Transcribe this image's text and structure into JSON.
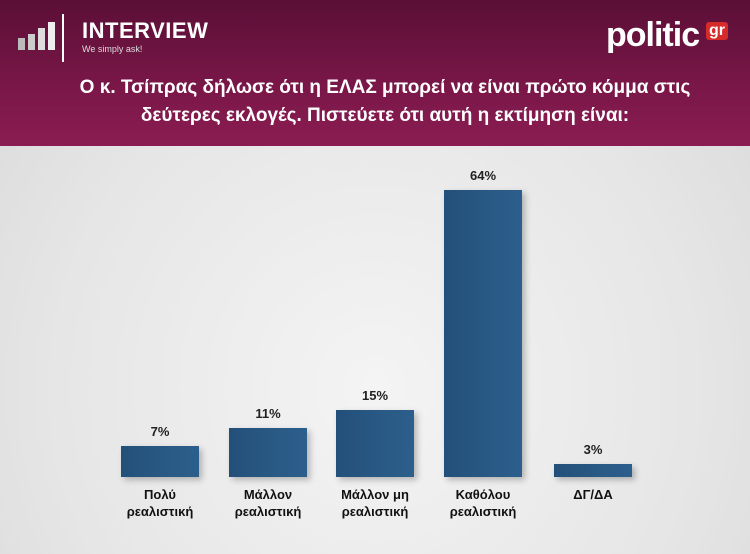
{
  "header": {
    "brand": "INTERVIEW",
    "tagline": "We simply ask!",
    "logo": "politic",
    "logo_suffix": "gr"
  },
  "chart_data": {
    "type": "bar",
    "title": "Ο κ. Τσίπρας δήλωσε ότι η ΕΛΑΣ μπορεί να είναι πρώτο κόμμα στις δεύτερες εκλογές. Πιστεύετε ότι αυτή η εκτίμηση είναι:",
    "categories": [
      "Πολύ ρεαλιστική",
      "Μάλλον ρεαλιστική",
      "Μάλλον μη ρεαλιστική",
      "Καθόλου ρεαλιστική",
      "ΔΓ/ΔΑ"
    ],
    "values": [
      7,
      11,
      15,
      64,
      3
    ],
    "value_labels": [
      "7%",
      "11%",
      "15%",
      "64%",
      "3%"
    ],
    "color": "#23507a"
  }
}
